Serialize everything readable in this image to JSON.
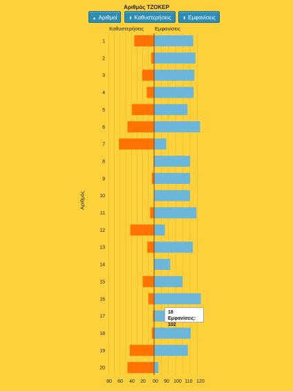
{
  "chart_data": {
    "type": "bar",
    "title": "Αριθμός ΤΖΟΚΕΡ",
    "ylabel": "Αριθμός",
    "left_series_label": "Καθυστερήσεις",
    "right_series_label": "Εμφανίσεις",
    "categories": [
      "1",
      "2",
      "3",
      "4",
      "5",
      "6",
      "7",
      "8",
      "9",
      "10",
      "11",
      "12",
      "13",
      "14",
      "15",
      "16",
      "17",
      "18",
      "19",
      "20"
    ],
    "series": [
      {
        "name": "Καθυστερήσεις",
        "values": [
          35,
          5,
          21,
          13,
          39,
          47,
          62,
          1,
          4,
          0,
          7,
          42,
          12,
          0,
          20,
          10,
          2,
          4,
          43,
          47
        ]
      },
      {
        "name": "Εμφανίσεις",
        "values": [
          109,
          115,
          112,
          110,
          93,
          128,
          34,
          100,
          100,
          100,
          118,
          30,
          108,
          45,
          79,
          130,
          30,
          102,
          94,
          12
        ]
      }
    ],
    "x_ticks": [
      "80",
      "60",
      "40",
      "20",
      "0",
      "20",
      "40",
      "60",
      "80",
      "100",
      "120"
    ],
    "x_ticks_display": [
      "80",
      "60",
      "40",
      "20",
      "0",
      "0",
      "90",
      "100",
      "110",
      "120"
    ],
    "tooltip": {
      "category": "18",
      "text": "Εμφανίσεις: 102"
    },
    "colors": {
      "left": "#FF7304",
      "right": "#6BB6D9",
      "background": "#FDD13B",
      "axis": "#D98C00"
    }
  },
  "buttons": {
    "sort_numbers": "Αριθμοί",
    "sort_delays": "Καθυστερήσεις",
    "sort_appearances": "Εμφανίσεις"
  }
}
